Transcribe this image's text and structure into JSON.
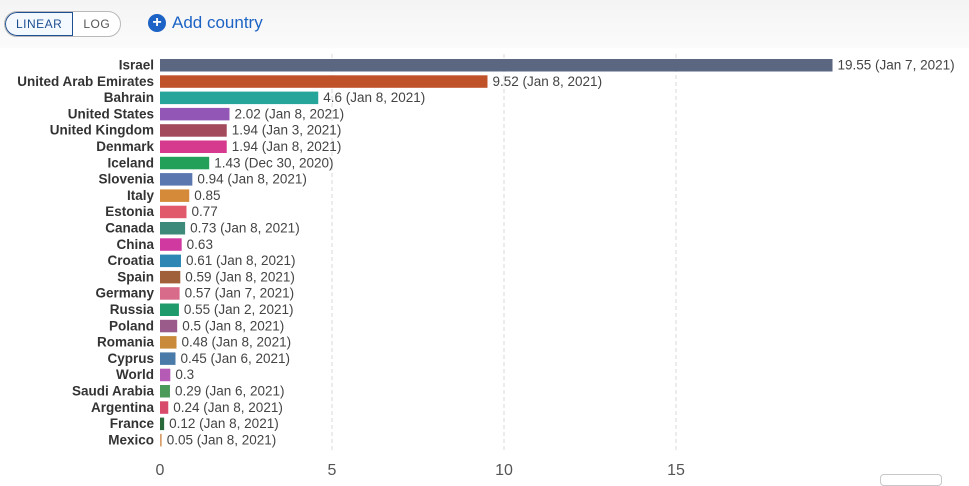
{
  "toolbar": {
    "linear_label": "LINEAR",
    "log_label": "LOG",
    "add_country_label": "Add country",
    "add_icon": "plus-circle-icon",
    "accent_color": "#1d63c5"
  },
  "chart_data": {
    "type": "bar",
    "orientation": "horizontal",
    "scale": "linear",
    "xlim": [
      0,
      20
    ],
    "xticks": [
      0,
      5,
      10,
      15
    ],
    "grid": "vertical dashed",
    "bars": [
      {
        "category": "Israel",
        "value": 19.55,
        "label": "19.55 (Jan 7, 2021)",
        "color": "#5b6680"
      },
      {
        "category": "United Arab Emirates",
        "value": 9.52,
        "label": "9.52 (Jan 8, 2021)",
        "color": "#c0522a"
      },
      {
        "category": "Bahrain",
        "value": 4.6,
        "label": "4.6 (Jan 8, 2021)",
        "color": "#26a69a"
      },
      {
        "category": "United States",
        "value": 2.02,
        "label": "2.02 (Jan 8, 2021)",
        "color": "#9257b6"
      },
      {
        "category": "United Kingdom",
        "value": 1.94,
        "label": "1.94 (Jan 3, 2021)",
        "color": "#a34a5c"
      },
      {
        "category": "Denmark",
        "value": 1.94,
        "label": "1.94 (Jan 8, 2021)",
        "color": "#d63a8f"
      },
      {
        "category": "Iceland",
        "value": 1.43,
        "label": "1.43 (Dec 30, 2020)",
        "color": "#22a05a"
      },
      {
        "category": "Slovenia",
        "value": 0.94,
        "label": "0.94 (Jan 8, 2021)",
        "color": "#5a77b0"
      },
      {
        "category": "Italy",
        "value": 0.85,
        "label": "0.85",
        "color": "#d58a3a"
      },
      {
        "category": "Estonia",
        "value": 0.77,
        "label": "0.77",
        "color": "#e05a6c"
      },
      {
        "category": "Canada",
        "value": 0.73,
        "label": "0.73 (Jan 8, 2021)",
        "color": "#3e8a7a"
      },
      {
        "category": "China",
        "value": 0.63,
        "label": "0.63",
        "color": "#d03aa0"
      },
      {
        "category": "Croatia",
        "value": 0.61,
        "label": "0.61 (Jan 8, 2021)",
        "color": "#2e86b5"
      },
      {
        "category": "Spain",
        "value": 0.59,
        "label": "0.59 (Jan 8, 2021)",
        "color": "#a0603a"
      },
      {
        "category": "Germany",
        "value": 0.57,
        "label": "0.57 (Jan 7, 2021)",
        "color": "#d86a8a"
      },
      {
        "category": "Russia",
        "value": 0.55,
        "label": "0.55 (Jan 2, 2021)",
        "color": "#1f9a6a"
      },
      {
        "category": "Poland",
        "value": 0.5,
        "label": "0.5 (Jan 8, 2021)",
        "color": "#9a5a8a"
      },
      {
        "category": "Romania",
        "value": 0.48,
        "label": "0.48 (Jan 8, 2021)",
        "color": "#c98a3a"
      },
      {
        "category": "Cyprus",
        "value": 0.45,
        "label": "0.45 (Jan 6, 2021)",
        "color": "#4a7aa8"
      },
      {
        "category": "World",
        "value": 0.3,
        "label": "0.3",
        "color": "#b55ab5"
      },
      {
        "category": "Saudi Arabia",
        "value": 0.29,
        "label": "0.29 (Jan 6, 2021)",
        "color": "#4a9a5a"
      },
      {
        "category": "Argentina",
        "value": 0.24,
        "label": "0.24 (Jan 8, 2021)",
        "color": "#d84a6a"
      },
      {
        "category": "France",
        "value": 0.12,
        "label": "0.12 (Jan 8, 2021)",
        "color": "#2a6a3a"
      },
      {
        "category": "Mexico",
        "value": 0.05,
        "label": "0.05 (Jan 8, 2021)",
        "color": "#d8a06a"
      }
    ]
  }
}
